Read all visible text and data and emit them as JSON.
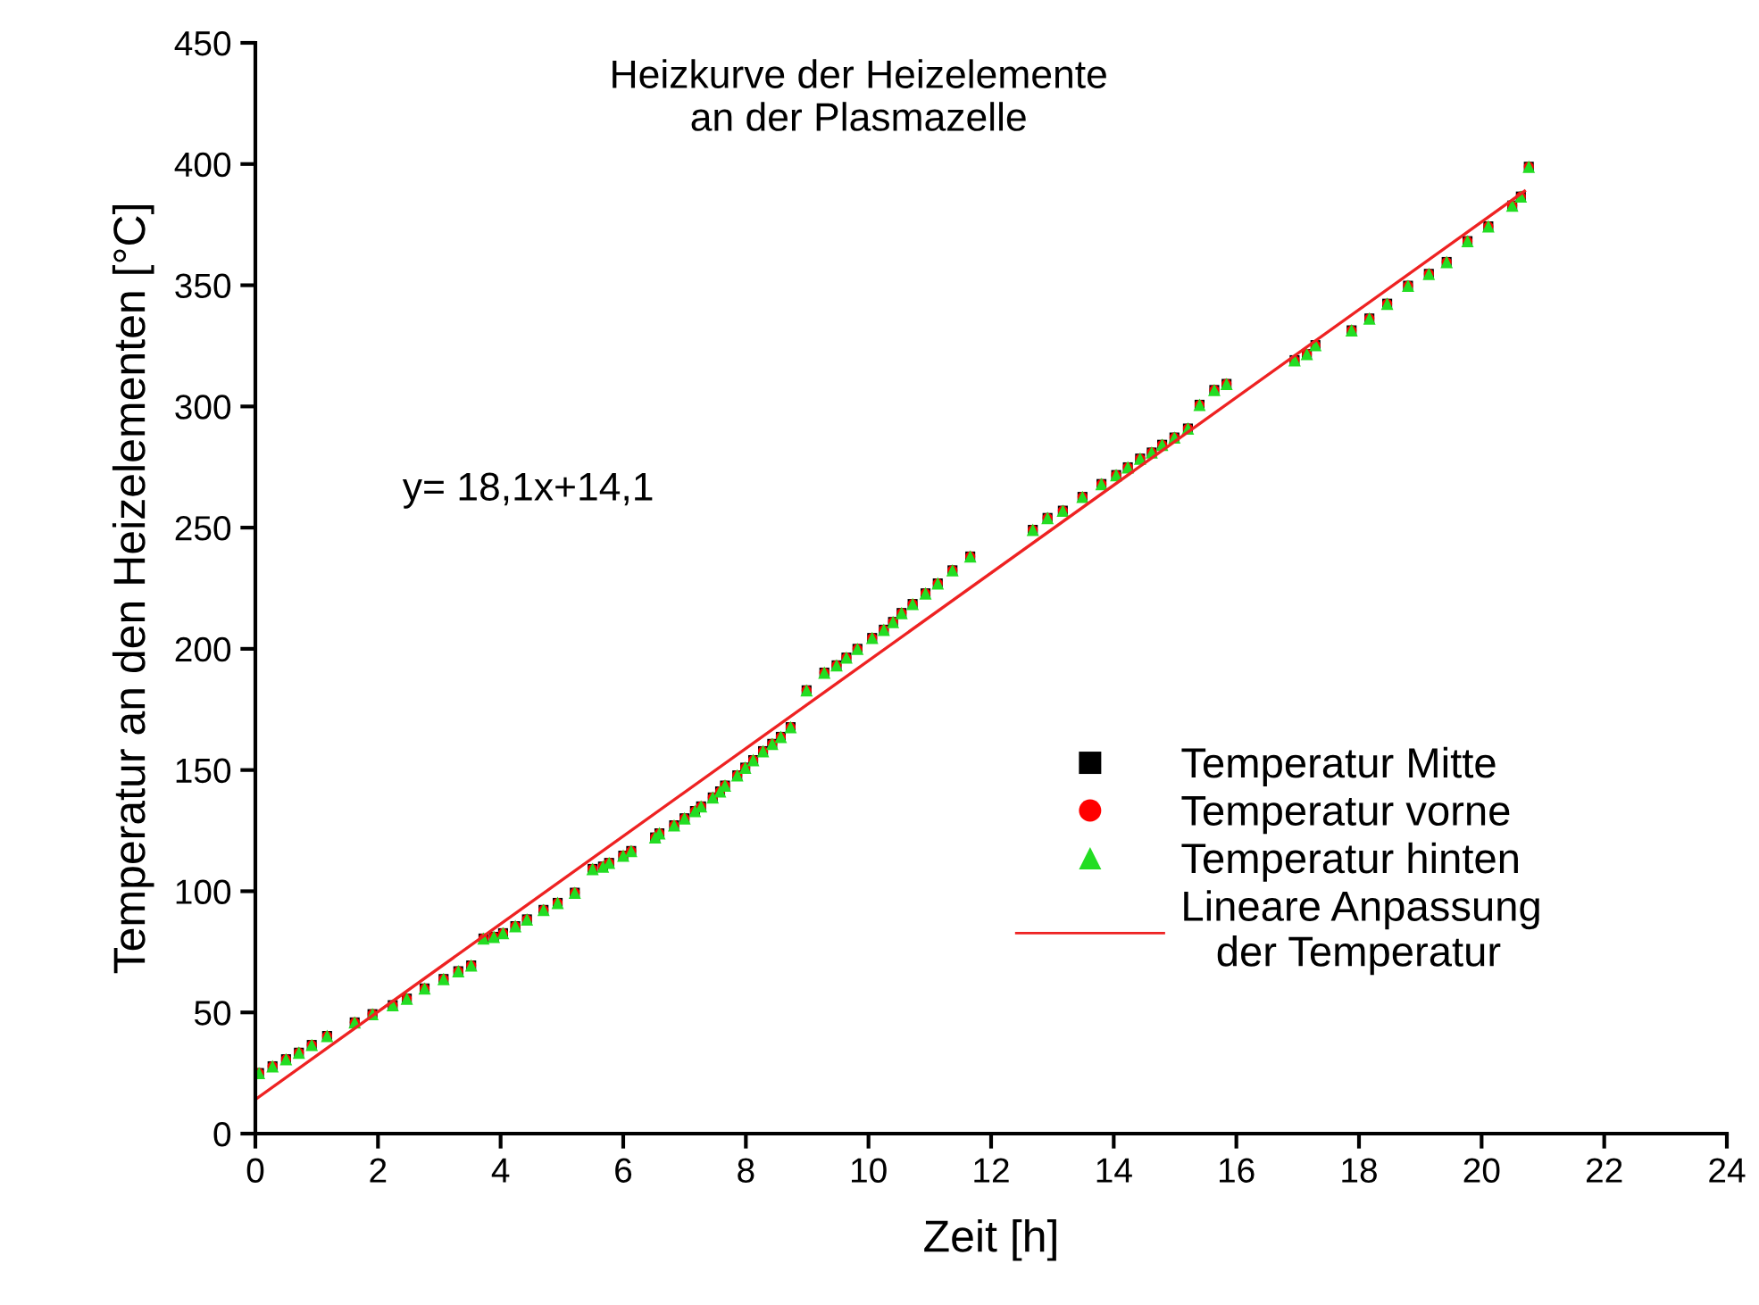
{
  "chart_data": {
    "type": "scatter",
    "title": "Heizkurve der Heizelemente\nan der Plasmazelle",
    "xlabel": "Zeit [h]",
    "ylabel": "Temperatur an den Heizelementen [°C]",
    "annotations": [
      "y= 18,1x+14,1"
    ],
    "x": [
      0.06,
      0.28,
      0.5,
      0.71,
      0.92,
      1.17,
      1.62,
      1.91,
      2.24,
      2.47,
      2.76,
      3.07,
      3.31,
      3.52,
      3.72,
      3.89,
      4.04,
      4.24,
      4.43,
      4.7,
      4.93,
      5.21,
      5.5,
      5.67,
      5.77,
      6.0,
      6.13,
      6.52,
      6.59,
      6.83,
      7.0,
      7.17,
      7.27,
      7.46,
      7.58,
      7.66,
      7.86,
      7.99,
      8.12,
      8.28,
      8.43,
      8.57,
      8.73,
      8.99,
      9.28,
      9.48,
      9.64,
      9.82,
      10.06,
      10.25,
      10.4,
      10.54,
      10.72,
      10.93,
      11.13,
      11.37,
      11.66,
      12.68,
      12.92,
      13.17,
      13.49,
      13.8,
      14.04,
      14.23,
      14.43,
      14.62,
      14.79,
      14.99,
      15.21,
      15.4,
      15.64,
      15.84,
      16.95,
      17.15,
      17.29,
      17.88,
      18.17,
      18.46,
      18.8,
      19.14,
      19.43,
      19.77,
      20.11,
      20.5,
      20.64,
      20.77
    ],
    "series": [
      {
        "name": "Temperatur Mitte",
        "color": "#000000",
        "marker": "square",
        "values": [
          25,
          27.8,
          30.7,
          33.4,
          36.6,
          40.3,
          45.9,
          49.3,
          53,
          55.7,
          59.9,
          63.8,
          67,
          69.4,
          80.5,
          81.2,
          82.7,
          85.6,
          88.4,
          92.3,
          95.2,
          99.4,
          109.2,
          110.2,
          111.7,
          114.7,
          116.6,
          122.2,
          123.9,
          127.2,
          130.1,
          133.1,
          135,
          138.7,
          141.2,
          143.6,
          147.8,
          151,
          154.1,
          157.8,
          160.8,
          163.7,
          167.7,
          182.9,
          190.2,
          193.2,
          196.4,
          200,
          204.5,
          207.9,
          211.1,
          214.8,
          218.5,
          222.9,
          227,
          232.4,
          238.1,
          249.1,
          254,
          257,
          262.7,
          268,
          271.7,
          274.9,
          278.5,
          281,
          284.2,
          287.2,
          290.9,
          300.7,
          306.8,
          309.3,
          319.1,
          321.6,
          325.3,
          331.4,
          336.3,
          342.4,
          349.8,
          354.7,
          359.6,
          368.2,
          374.3,
          382.9,
          386.6,
          398.9
        ]
      },
      {
        "name": "Temperatur vorne",
        "color": "#ff0000",
        "marker": "circle",
        "values": [
          25,
          27.8,
          30.7,
          33.4,
          36.6,
          40.3,
          45.9,
          49.3,
          53,
          55.7,
          59.9,
          63.8,
          67,
          69.4,
          80.5,
          81.2,
          82.7,
          85.6,
          88.4,
          92.3,
          95.2,
          99.4,
          109.2,
          110.2,
          111.7,
          114.7,
          116.6,
          122.2,
          123.9,
          127.2,
          130.1,
          133.1,
          135,
          138.7,
          141.2,
          143.6,
          147.8,
          151,
          154.1,
          157.8,
          160.8,
          163.7,
          167.7,
          182.9,
          190.2,
          193.2,
          196.4,
          200,
          204.5,
          207.9,
          211.1,
          214.8,
          218.5,
          222.9,
          227,
          232.4,
          238.1,
          249.1,
          254,
          257,
          262.7,
          268,
          271.7,
          274.9,
          278.5,
          281,
          284.2,
          287.2,
          290.9,
          300.7,
          306.8,
          309.3,
          319.1,
          321.6,
          325.3,
          331.4,
          336.3,
          342.4,
          349.8,
          354.7,
          359.6,
          368.2,
          374.3,
          382.9,
          386.6,
          398.9
        ]
      },
      {
        "name": "Temperatur hinten",
        "color": "#22dd22",
        "marker": "triangle",
        "values": [
          25,
          27.8,
          30.7,
          33.4,
          36.6,
          40.3,
          45.9,
          49.3,
          53,
          55.7,
          59.9,
          63.8,
          67,
          69.4,
          80.5,
          81.2,
          82.7,
          85.6,
          88.4,
          92.3,
          95.2,
          99.4,
          109.2,
          110.2,
          111.7,
          114.7,
          116.6,
          122.2,
          123.9,
          127.2,
          130.1,
          133.1,
          135,
          138.7,
          141.2,
          143.6,
          147.8,
          151,
          154.1,
          157.8,
          160.8,
          163.7,
          167.7,
          182.9,
          190.2,
          193.2,
          196.4,
          200,
          204.5,
          207.9,
          211.1,
          214.8,
          218.5,
          222.9,
          227,
          232.4,
          238.1,
          249.1,
          254,
          257,
          262.7,
          268,
          271.7,
          274.9,
          278.5,
          281,
          284.2,
          287.2,
          290.9,
          300.7,
          306.8,
          309.3,
          319.1,
          321.6,
          325.3,
          331.4,
          336.3,
          342.4,
          349.8,
          354.7,
          359.6,
          368.2,
          374.3,
          382.9,
          386.6,
          398.9
        ]
      },
      {
        "name": "Lineare Anpassung\n   der Temperatur",
        "type": "line",
        "color": "#ee2222",
        "x": [
          0,
          20.7
        ],
        "values": [
          14.1,
          388.8
        ]
      }
    ],
    "xlim": [
      0,
      24
    ],
    "xticks": [
      0,
      2,
      4,
      6,
      8,
      10,
      12,
      14,
      16,
      18,
      20,
      22,
      24
    ],
    "ylim": [
      0,
      450
    ],
    "yticks": [
      0,
      50,
      100,
      150,
      200,
      250,
      300,
      350,
      400,
      450
    ],
    "grid": false,
    "legend": "right"
  }
}
